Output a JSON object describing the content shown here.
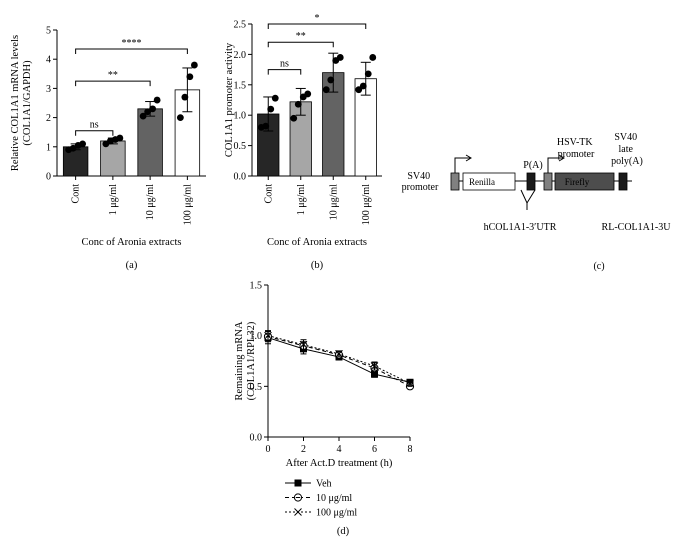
{
  "chart_data": [
    {
      "panel": "(a)",
      "type": "bar",
      "ylabel": "Relative COL1A1 mRNA levels (COL1A1/GAPDH)",
      "ylabel_lines": [
        "Relative COL1A1 mRNA levels",
        "(COL1A1/GAPDH)"
      ],
      "xlabel": "Conc of Aronia extracts",
      "categories": [
        "Cont",
        "1 μg/ml",
        "10 μg/ml",
        "100 μg/ml"
      ],
      "values": [
        1.0,
        1.2,
        2.3,
        2.95
      ],
      "error": [
        0.1,
        0.1,
        0.25,
        0.75
      ],
      "points": [
        [
          0.9,
          0.95,
          1.05,
          1.1
        ],
        [
          1.1,
          1.2,
          1.25,
          1.3
        ],
        [
          2.05,
          2.2,
          2.3,
          2.6
        ],
        [
          2.0,
          2.7,
          3.4,
          3.8
        ]
      ],
      "bar_colors": [
        "#262626",
        "#a6a6a6",
        "#636363",
        "#ffffff"
      ],
      "ylim": [
        0,
        5
      ],
      "yticks": [
        0,
        1,
        2,
        3,
        4,
        5
      ],
      "significance": [
        {
          "from": 0,
          "to": 1,
          "label": "ns",
          "y": 1.55
        },
        {
          "from": 0,
          "to": 2,
          "label": "**",
          "y": 3.25
        },
        {
          "from": 0,
          "to": 3,
          "label": "****",
          "y": 4.35
        }
      ]
    },
    {
      "panel": "(b)",
      "type": "bar",
      "ylabel": "COL1A1 promoter activity",
      "xlabel": "Conc of Aronia extracts",
      "categories": [
        "Cont",
        "1 μg/ml",
        "10 μg/ml",
        "100 μg/ml"
      ],
      "values": [
        1.02,
        1.22,
        1.7,
        1.6
      ],
      "error": [
        0.28,
        0.22,
        0.32,
        0.27
      ],
      "points": [
        [
          0.8,
          0.82,
          1.1,
          1.28
        ],
        [
          0.95,
          1.18,
          1.3,
          1.35
        ],
        [
          1.42,
          1.58,
          1.9,
          1.95
        ],
        [
          1.42,
          1.48,
          1.68,
          1.95
        ]
      ],
      "bar_colors": [
        "#262626",
        "#a6a6a6",
        "#636363",
        "#ffffff"
      ],
      "ylim": [
        0,
        2.5
      ],
      "yticks": [
        0.0,
        0.5,
        1.0,
        1.5,
        2.0,
        2.5
      ],
      "significance": [
        {
          "from": 0,
          "to": 1,
          "label": "ns",
          "y": 1.75
        },
        {
          "from": 0,
          "to": 2,
          "label": "**",
          "y": 2.2
        },
        {
          "from": 0,
          "to": 3,
          "label": "*",
          "y": 2.5
        }
      ]
    },
    {
      "panel": "(d)",
      "type": "line",
      "ylabel": "Remaining mRNA (COL1A1/RPL32)",
      "ylabel_lines": [
        "Remaining mRNA",
        "(COL1A1/RPL32)"
      ],
      "xlabel": "After Act.D treatment (h)",
      "x": [
        0,
        2,
        4,
        6,
        8
      ],
      "xlim": [
        0,
        8
      ],
      "xticks": [
        0,
        2,
        4,
        6,
        8
      ],
      "ylim": [
        0,
        1.5
      ],
      "yticks": [
        0.0,
        0.5,
        1.0,
        1.5
      ],
      "legend_position": "bottom-left",
      "series": [
        {
          "name": "Veh",
          "marker": "square",
          "dash": "",
          "values": [
            0.98,
            0.87,
            0.79,
            0.62,
            0.54
          ],
          "error": [
            0.06,
            0.05,
            0.03,
            0.03,
            0.02
          ]
        },
        {
          "name": "10 μg/ml",
          "marker": "circle",
          "dash": "4,3",
          "values": [
            0.99,
            0.9,
            0.81,
            0.68,
            0.5
          ],
          "error": [
            0.05,
            0.04,
            0.03,
            0.05,
            0.02
          ]
        },
        {
          "name": "100 μg/ml",
          "marker": "cross",
          "dash": "2,2",
          "values": [
            1.0,
            0.91,
            0.82,
            0.7,
            0.53
          ],
          "error": [
            0.05,
            0.05,
            0.03,
            0.04,
            0.02
          ]
        }
      ]
    }
  ],
  "diagram_c": {
    "panel": "(c)",
    "sv40_promoter_lines": [
      "SV40",
      "promoter"
    ],
    "renilla": "Renilla",
    "firefly": "Firefly",
    "pa": "P(A)",
    "hsv_lines": [
      "HSV-TK",
      "promoter"
    ],
    "sv40_late_lines": [
      "SV40",
      "late",
      "poly(A)"
    ],
    "utr": "hCOL1A1-3′UTR",
    "construct": "RL-COL1A1-3U"
  }
}
